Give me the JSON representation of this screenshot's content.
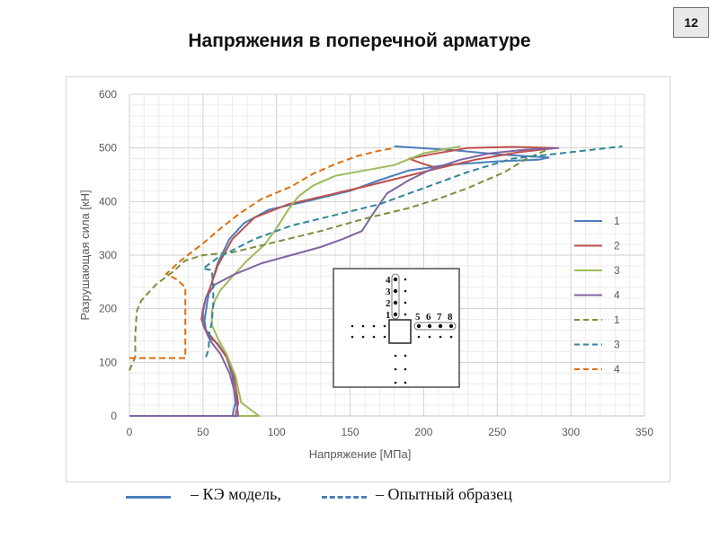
{
  "slide": {
    "title": "Напряжения в поперечной арматуре",
    "number": "12"
  },
  "bottom_legend": {
    "solid_label": "– КЭ модель,",
    "dashed_label": "– Опытный образец",
    "line_color": "#4a7ebb"
  },
  "inset": {
    "vertical_labels": [
      "4",
      "3",
      "2",
      "1"
    ],
    "horizontal_labels": [
      "5",
      "6",
      "7",
      "8"
    ]
  },
  "chart_data": {
    "type": "line",
    "xlabel": "Напряжение [МПа]",
    "ylabel": "Разрушающая сила [кН]",
    "xlim": [
      0,
      350
    ],
    "ylim": [
      0,
      600
    ],
    "xticks": [
      "0",
      "50",
      "100",
      "150",
      "200",
      "250",
      "300",
      "350"
    ],
    "yticks": [
      "0",
      "100",
      "200",
      "300",
      "400",
      "500",
      "600"
    ],
    "grid": true,
    "legend_position": "right",
    "series": [
      {
        "name": "1",
        "style": "solid",
        "color": "#4a7ebb",
        "points": [
          [
            0,
            0
          ],
          [
            70,
            0
          ],
          [
            72,
            25
          ],
          [
            70,
            75
          ],
          [
            66,
            110
          ],
          [
            60,
            135
          ],
          [
            55,
            145
          ],
          [
            52,
            160
          ],
          [
            51,
            178
          ],
          [
            52,
            195
          ],
          [
            53,
            215
          ],
          [
            55,
            240
          ],
          [
            60,
            285
          ],
          [
            68,
            330
          ],
          [
            78,
            360
          ],
          [
            95,
            385
          ],
          [
            120,
            400
          ],
          [
            150,
            420
          ],
          [
            170,
            440
          ],
          [
            190,
            458
          ],
          [
            215,
            468
          ],
          [
            250,
            475
          ],
          [
            278,
            478
          ],
          [
            285,
            482
          ],
          [
            250,
            488
          ],
          [
            220,
            496
          ],
          [
            180,
            503
          ]
        ]
      },
      {
        "name": "2",
        "style": "solid",
        "color": "#c0504d",
        "points": [
          [
            0,
            0
          ],
          [
            72,
            0
          ],
          [
            74,
            25
          ],
          [
            71,
            75
          ],
          [
            66,
            110
          ],
          [
            58,
            140
          ],
          [
            52,
            160
          ],
          [
            49,
            180
          ],
          [
            50,
            200
          ],
          [
            52,
            220
          ],
          [
            55,
            240
          ],
          [
            60,
            280
          ],
          [
            70,
            330
          ],
          [
            85,
            370
          ],
          [
            108,
            395
          ],
          [
            135,
            412
          ],
          [
            160,
            428
          ],
          [
            185,
            445
          ],
          [
            210,
            462
          ],
          [
            235,
            478
          ],
          [
            265,
            492
          ],
          [
            290,
            500
          ],
          [
            260,
            502
          ],
          [
            230,
            500
          ],
          [
            205,
            488
          ],
          [
            190,
            480
          ],
          [
            200,
            470
          ],
          [
            210,
            462
          ]
        ]
      },
      {
        "name": "3",
        "style": "solid",
        "color": "#9bbb59",
        "points": [
          [
            0,
            0
          ],
          [
            88,
            0
          ],
          [
            76,
            25
          ],
          [
            72,
            75
          ],
          [
            66,
            115
          ],
          [
            60,
            145
          ],
          [
            56,
            170
          ],
          [
            56,
            195
          ],
          [
            58,
            215
          ],
          [
            62,
            235
          ],
          [
            70,
            260
          ],
          [
            80,
            290
          ],
          [
            92,
            320
          ],
          [
            100,
            350
          ],
          [
            108,
            385
          ],
          [
            115,
            410
          ],
          [
            125,
            430
          ],
          [
            140,
            448
          ],
          [
            160,
            458
          ],
          [
            180,
            468
          ],
          [
            200,
            490
          ],
          [
            225,
            503
          ]
        ]
      },
      {
        "name": "4",
        "style": "solid",
        "color": "#8064a2",
        "points": [
          [
            0,
            0
          ],
          [
            74,
            0
          ],
          [
            72,
            40
          ],
          [
            68,
            80
          ],
          [
            62,
            115
          ],
          [
            55,
            140
          ],
          [
            50,
            170
          ],
          [
            50,
            195
          ],
          [
            52,
            220
          ],
          [
            58,
            245
          ],
          [
            72,
            265
          ],
          [
            90,
            285
          ],
          [
            110,
            300
          ],
          [
            130,
            315
          ],
          [
            145,
            330
          ],
          [
            158,
            345
          ],
          [
            165,
            375
          ],
          [
            175,
            415
          ],
          [
            190,
            440
          ],
          [
            205,
            460
          ],
          [
            225,
            478
          ],
          [
            245,
            490
          ],
          [
            270,
            497
          ],
          [
            292,
            500
          ]
        ]
      },
      {
        "name": "1",
        "style": "dashed",
        "color": "#76923c",
        "points": [
          [
            0,
            85
          ],
          [
            4,
            110
          ],
          [
            4,
            150
          ],
          [
            5,
            195
          ],
          [
            8,
            215
          ],
          [
            18,
            245
          ],
          [
            30,
            270
          ],
          [
            38,
            290
          ],
          [
            50,
            300
          ],
          [
            70,
            305
          ],
          [
            100,
            325
          ],
          [
            130,
            345
          ],
          [
            160,
            368
          ],
          [
            190,
            388
          ],
          [
            210,
            405
          ],
          [
            230,
            425
          ],
          [
            255,
            455
          ],
          [
            270,
            480
          ],
          [
            285,
            498
          ]
        ]
      },
      {
        "name": "3",
        "style": "dashed",
        "color": "#31859b",
        "points": [
          [
            52,
            110
          ],
          [
            54,
            125
          ],
          [
            54,
            150
          ],
          [
            56,
            175
          ],
          [
            57,
            210
          ],
          [
            57,
            240
          ],
          [
            56,
            272
          ],
          [
            50,
            275
          ],
          [
            60,
            295
          ],
          [
            85,
            330
          ],
          [
            110,
            355
          ],
          [
            140,
            375
          ],
          [
            170,
            395
          ],
          [
            200,
            425
          ],
          [
            230,
            455
          ],
          [
            260,
            480
          ],
          [
            300,
            492
          ],
          [
            335,
            503
          ]
        ]
      },
      {
        "name": "4",
        "style": "dashed",
        "color": "#e36c09",
        "points": [
          [
            0,
            108
          ],
          [
            20,
            108
          ],
          [
            38,
            108
          ],
          [
            38,
            145
          ],
          [
            38,
            180
          ],
          [
            38,
            240
          ],
          [
            32,
            255
          ],
          [
            25,
            265
          ],
          [
            35,
            290
          ],
          [
            50,
            322
          ],
          [
            62,
            350
          ],
          [
            75,
            378
          ],
          [
            90,
            405
          ],
          [
            110,
            428
          ],
          [
            125,
            452
          ],
          [
            140,
            470
          ],
          [
            155,
            485
          ],
          [
            170,
            495
          ],
          [
            180,
            500
          ]
        ]
      }
    ]
  }
}
